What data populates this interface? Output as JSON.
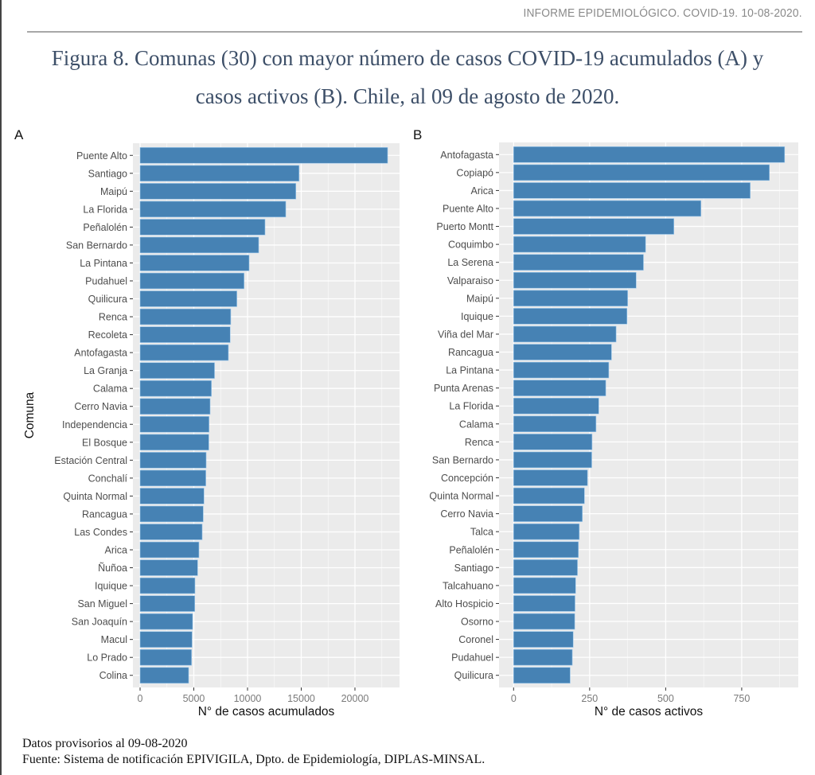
{
  "header": {
    "report": "INFORME EPIDEMIOLÓGICO. COVID-19. 10-08-2020."
  },
  "figure": {
    "title_line1": "Figura 8. Comunas (30) con mayor número de casos COVID-19 acumulados (A) y",
    "title_line2": "casos activos (B). Chile, al 09 de agosto de 2020."
  },
  "footer": {
    "line1": "Datos provisorios al 09-08-2020",
    "line2": "Fuente: Sistema de notificación EPIVIGILA, Dpto. de Epidemiología, DIPLAS-MINSAL."
  },
  "colors": {
    "bar": "#4682b4",
    "panel": "#ebebeb",
    "grid": "#ffffff",
    "tick_text": "#4d4d4d"
  },
  "chart_data": [
    {
      "type": "bar",
      "orientation": "horizontal",
      "panel_label": "A",
      "title": "",
      "xlabel": "N° de casos acumulados",
      "ylabel": "Comuna",
      "xlim": [
        0,
        24150
      ],
      "xticks": [
        0,
        5000,
        10000,
        15000,
        20000
      ],
      "xtick_labels": [
        "0",
        "5000",
        "10000",
        "15000",
        "20000"
      ],
      "grid": true,
      "categories": [
        "Puente Alto",
        "Santiago",
        "Maipú",
        "La Florida",
        "Peñalolén",
        "San Bernardo",
        "La Pintana",
        "Pudahuel",
        "Quilicura",
        "Renca",
        "Recoleta",
        "Antofagasta",
        "La Granja",
        "Calama",
        "Cerro Navia",
        "Independencia",
        "El Bosque",
        "Estación Central",
        "Conchalí",
        "Quinta Normal",
        "Rancagua",
        "Las Condes",
        "Arica",
        "Ñuñoa",
        "Iquique",
        "San Miguel",
        "San Joaquín",
        "Macul",
        "Lo Prado",
        "Colina"
      ],
      "values": [
        23040,
        14800,
        14500,
        13560,
        11630,
        11040,
        10150,
        9680,
        9010,
        8440,
        8390,
        8220,
        6930,
        6640,
        6520,
        6420,
        6400,
        6150,
        6120,
        5950,
        5880,
        5780,
        5480,
        5360,
        5110,
        5090,
        4890,
        4840,
        4790,
        4520
      ]
    },
    {
      "type": "bar",
      "orientation": "horizontal",
      "panel_label": "B",
      "title": "",
      "xlabel": "N° de casos activos",
      "ylabel": "",
      "xlim": [
        0,
        936
      ],
      "xticks": [
        0,
        250,
        500,
        750
      ],
      "xtick_labels": [
        "0",
        "250",
        "500",
        "750"
      ],
      "grid": true,
      "categories": [
        "Antofagasta",
        "Copiapó",
        "Arica",
        "Puente Alto",
        "Puerto Montt",
        "Coquimbo",
        "La Serena",
        "Valparaiso",
        "Maipú",
        "Iquique",
        "Viña del Mar",
        "Rancagua",
        "La Pintana",
        "Punta Arenas",
        "La Florida",
        "Calama",
        "Renca",
        "San Bernardo",
        "Concepción",
        "Quinta Normal",
        "Cerro Navia",
        "Talca",
        "Peñalolén",
        "Santiago",
        "Talcahuano",
        "Alto Hospicio",
        "Osorno",
        "Coronel",
        "Pudahuel",
        "Quilicura"
      ],
      "values": [
        891,
        841,
        778,
        616,
        527,
        434,
        427,
        403,
        375,
        373,
        337,
        322,
        313,
        303,
        280,
        271,
        258,
        257,
        243,
        233,
        226,
        216,
        213,
        210,
        204,
        202,
        201,
        196,
        193,
        186
      ]
    }
  ]
}
